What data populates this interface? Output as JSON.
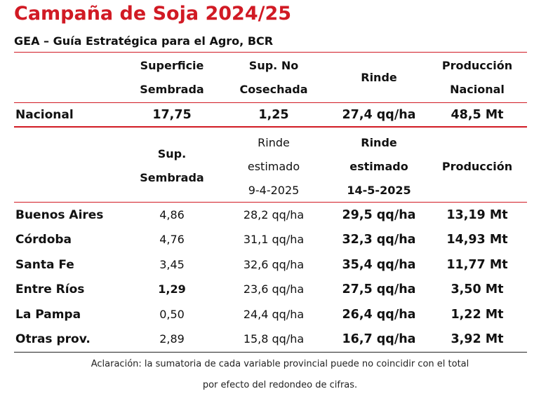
{
  "title": "Campaña de Soja 2024/25",
  "subtitle": "GEA – Guía Estratégica para el Agro, BCR",
  "accent_color": "#d11a24",
  "top_header": {
    "col1_line1": "Superficie",
    "col1_line2": "Sembrada",
    "col2_line1": "Sup. No",
    "col2_line2": "Cosechada",
    "col3": "Rinde",
    "col4_line1": "Producción",
    "col4_line2": "Nacional"
  },
  "national_row": {
    "label": "Nacional",
    "superficie": "17,75",
    "no_cosechada": "1,25",
    "rinde": "27,4 qq/ha",
    "produccion": "48,5 Mt"
  },
  "prov_header": {
    "col1_line1": "Sup.",
    "col1_line2": "Sembrada",
    "col2_line1": "Rinde",
    "col2_line2": "estimado",
    "col2_line3": "9-4-2025",
    "col3_line1": "Rinde",
    "col3_line2": "estimado",
    "col3_line3": "14-5-2025",
    "col4": "Producción"
  },
  "provinces": [
    {
      "name": "Buenos Aires",
      "sup": "4,86",
      "rinde_apr": "28,2 qq/ha",
      "rinde_may": "29,5 qq/ha",
      "prod": "13,19 Mt"
    },
    {
      "name": "Córdoba",
      "sup": "4,76",
      "rinde_apr": "31,1 qq/ha",
      "rinde_may": "32,3 qq/ha",
      "prod": "14,93 Mt"
    },
    {
      "name": "Santa Fe",
      "sup": "3,45",
      "rinde_apr": "32,6 qq/ha",
      "rinde_may": "35,4 qq/ha",
      "prod": "11,77 Mt"
    },
    {
      "name": "Entre Ríos",
      "sup": "1,29",
      "rinde_apr": "23,6 qq/ha",
      "rinde_may": "27,5 qq/ha",
      "prod": "3,50 Mt"
    },
    {
      "name": "La Pampa",
      "sup": "0,50",
      "rinde_apr": "24,4 qq/ha",
      "rinde_may": "26,4 qq/ha",
      "prod": "1,22 Mt"
    },
    {
      "name": "Otras prov.",
      "sup": "2,89",
      "rinde_apr": "15,8 qq/ha",
      "rinde_may": "16,7 qq/ha",
      "prod": "3,92 Mt"
    }
  ],
  "note_line1": "Aclaración: la sumatoria de cada variable provincial puede no coincidir con el total",
  "note_line2": "por efecto del redondeo de cifras."
}
